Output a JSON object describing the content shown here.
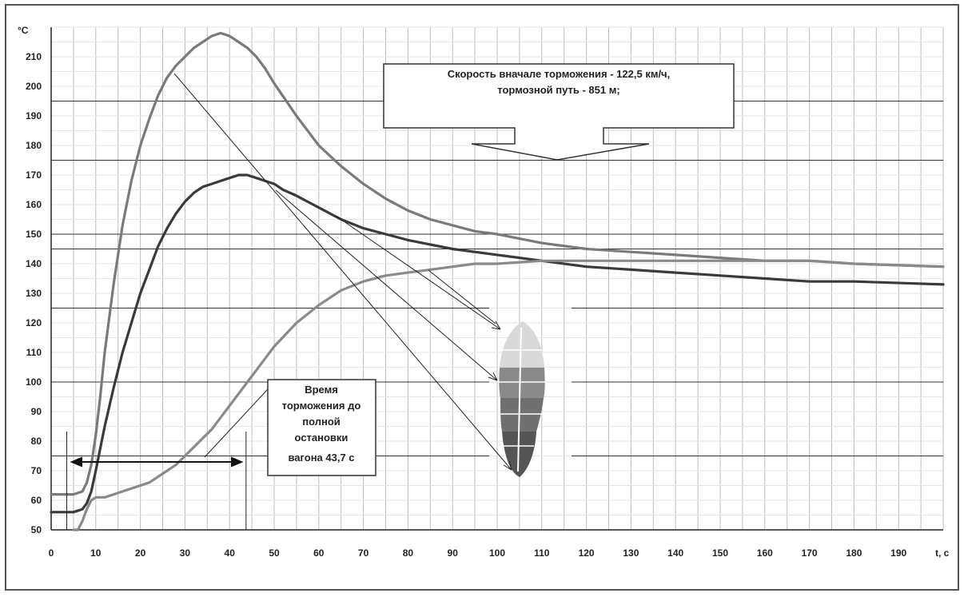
{
  "chart_data": {
    "type": "line",
    "y_unit": "°C",
    "x_unit": "t, c",
    "xlim": [
      0,
      200
    ],
    "ylim": [
      50,
      220
    ],
    "x_ticks": [
      0,
      10,
      20,
      30,
      40,
      50,
      60,
      70,
      80,
      90,
      100,
      110,
      120,
      130,
      140,
      150,
      160,
      170,
      180,
      190
    ],
    "y_ticks": [
      50,
      60,
      70,
      80,
      90,
      100,
      110,
      120,
      130,
      140,
      150,
      160,
      170,
      180,
      190,
      200,
      210
    ],
    "grid": true,
    "series": [
      {
        "color": "#7a7a7a",
        "x": [
          0,
          5,
          7,
          8,
          9,
          10,
          11,
          12,
          14,
          16,
          18,
          20,
          22,
          24,
          26,
          28,
          30,
          32,
          34,
          36,
          38,
          40,
          42,
          44,
          46,
          48,
          50,
          55,
          60,
          65,
          70,
          75,
          80,
          85,
          90,
          95,
          100,
          110,
          120,
          130,
          140,
          150,
          160,
          170,
          180,
          200
        ],
        "y": [
          62,
          62,
          63,
          66,
          72,
          82,
          95,
          110,
          133,
          153,
          168,
          180,
          189,
          197,
          203,
          207,
          210,
          213,
          215,
          217,
          218,
          217,
          215,
          213,
          210,
          206,
          201,
          190,
          180,
          173,
          167,
          162,
          158,
          155,
          153,
          151,
          150,
          147,
          145,
          144,
          143,
          142,
          141,
          141,
          140,
          139
        ]
      },
      {
        "color": "#3a3a3a",
        "x": [
          0,
          5,
          7,
          8,
          9,
          10,
          12,
          14,
          16,
          18,
          20,
          22,
          24,
          26,
          28,
          30,
          32,
          34,
          36,
          38,
          40,
          42,
          44,
          46,
          48,
          50,
          52,
          55,
          60,
          65,
          70,
          75,
          80,
          90,
          100,
          110,
          120,
          130,
          140,
          150,
          160,
          170,
          180,
          200
        ],
        "y": [
          56,
          56,
          57,
          59,
          63,
          70,
          85,
          98,
          110,
          120,
          130,
          138,
          146,
          152,
          157,
          161,
          164,
          166,
          167,
          168,
          169,
          170,
          170,
          169,
          168,
          167,
          165,
          163,
          159,
          155,
          152,
          150,
          148,
          145,
          143,
          141,
          139,
          138,
          137,
          136,
          135,
          134,
          134,
          133
        ]
      },
      {
        "color": "#8a8a8a",
        "x": [
          5,
          6,
          7,
          8,
          9,
          10,
          11,
          12,
          14,
          16,
          18,
          20,
          22,
          24,
          26,
          28,
          30,
          32,
          34,
          36,
          38,
          40,
          42,
          44,
          46,
          48,
          50,
          55,
          60,
          65,
          70,
          75,
          80,
          85,
          90,
          95,
          100,
          110,
          120,
          130,
          140,
          150,
          160,
          170,
          180,
          200
        ],
        "y": [
          45,
          48,
          53,
          57,
          60,
          61,
          61,
          61,
          62,
          63,
          64,
          65,
          66,
          68,
          70,
          72,
          75,
          78,
          81,
          84,
          88,
          92,
          96,
          100,
          104,
          108,
          112,
          120,
          126,
          131,
          134,
          136,
          137,
          138,
          139,
          140,
          140,
          141,
          141,
          141,
          141,
          141,
          141,
          141,
          140,
          139
        ]
      }
    ],
    "annotations": {
      "speed_box": [
        "Скорость вначале торможения - 122,5 км/ч,",
        "тормозной путь - 851 м;"
      ],
      "time_box": [
        "Время",
        "торможения до",
        "полной",
        "остановки",
        "вагона 43,7 с"
      ]
    },
    "highlight_lines_y": [
      75,
      100,
      125,
      145,
      150,
      175,
      195
    ],
    "vertical_markers_x": [
      3.5,
      43.7
    ]
  }
}
